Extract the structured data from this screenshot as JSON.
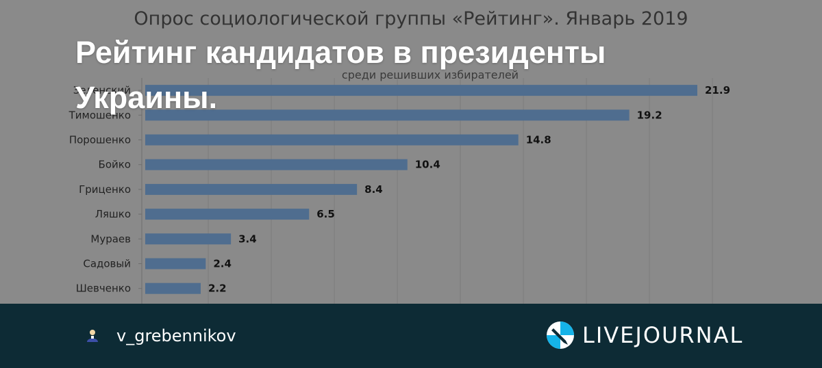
{
  "chart_data": {
    "type": "bar",
    "orientation": "horizontal",
    "title": "Опрос социологической группы «Рейтинг». Январь 2019",
    "subtitle": "среди решивших избирателей",
    "categories": [
      "Зеленский",
      "Тимошенко",
      "Порошенко",
      "Бойко",
      "Гриценко",
      "Ляшко",
      "Мураев",
      "Садовый",
      "Шевченко"
    ],
    "values": [
      21.9,
      19.2,
      14.8,
      10.4,
      8.4,
      6.5,
      3.4,
      2.4,
      2.2
    ],
    "xlim": [
      0,
      25
    ],
    "grid": true,
    "bar_color": "#4f6d8f"
  },
  "overlay": {
    "title": "Рейтинг кандидатов в президенты Украины."
  },
  "footer": {
    "author": "v_grebennikov",
    "brand": "LIVEJOURNAL",
    "author_icon": "user-icon",
    "brand_icon": "livejournal-pencil-icon",
    "background": "#0d2b35"
  }
}
